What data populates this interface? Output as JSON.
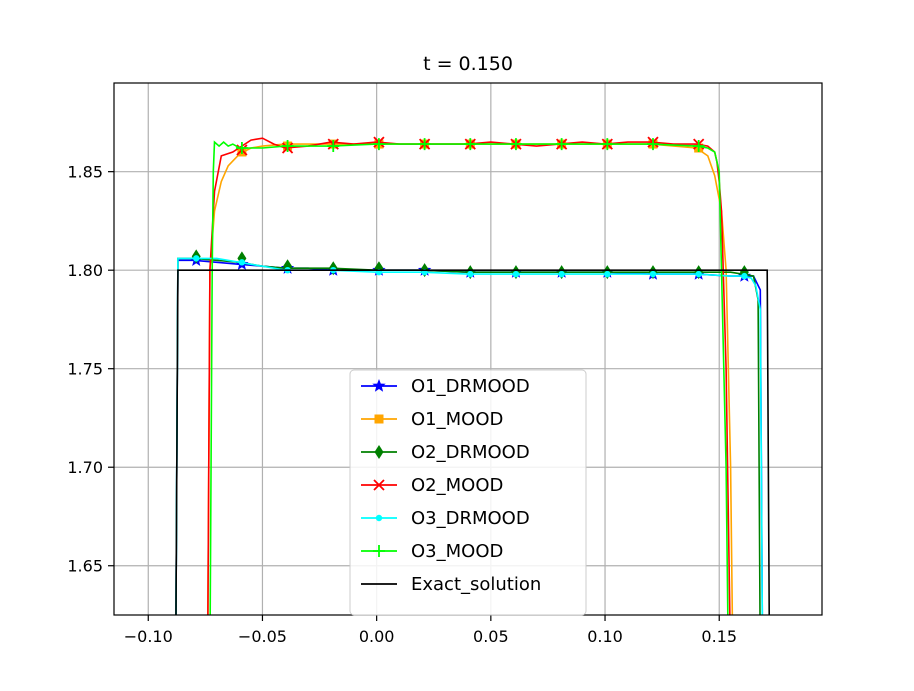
{
  "chart_data": {
    "type": "line",
    "title": "t = 0.150",
    "xlabel": "",
    "ylabel": "",
    "xlim": [
      -0.115,
      0.195
    ],
    "ylim": [
      1.625,
      1.895
    ],
    "xticks": [
      -0.1,
      -0.05,
      0.0,
      0.05,
      0.1,
      0.15
    ],
    "xtick_labels": [
      "−0.10",
      "−0.05",
      "0.00",
      "0.05",
      "0.10",
      "0.15"
    ],
    "yticks": [
      1.65,
      1.7,
      1.75,
      1.8,
      1.85
    ],
    "ytick_labels": [
      "1.65",
      "1.70",
      "1.75",
      "1.80",
      "1.85"
    ],
    "grid": true,
    "legend_position": "lower-center",
    "series": [
      {
        "name": "O1_DRMOOD",
        "color": "#0000ff",
        "marker": "star",
        "x": [
          -0.088,
          -0.087,
          -0.08,
          -0.07,
          -0.06,
          -0.05,
          -0.04,
          -0.03,
          -0.02,
          -0.01,
          0.0,
          0.02,
          0.04,
          0.06,
          0.08,
          0.1,
          0.12,
          0.14,
          0.155,
          0.16,
          0.165,
          0.168,
          0.169
        ],
        "y": [
          1.6,
          1.805,
          1.805,
          1.804,
          1.803,
          1.802,
          1.801,
          1.801,
          1.8,
          1.8,
          1.8,
          1.8,
          1.799,
          1.799,
          1.799,
          1.799,
          1.798,
          1.798,
          1.797,
          1.797,
          1.797,
          1.79,
          1.6
        ],
        "marker_x": [
          -0.079,
          -0.059,
          -0.039,
          -0.019,
          0.001,
          0.021,
          0.041,
          0.061,
          0.081,
          0.101,
          0.121,
          0.141,
          0.161
        ],
        "marker_y": [
          1.805,
          1.803,
          1.801,
          1.8,
          1.8,
          1.8,
          1.799,
          1.799,
          1.799,
          1.799,
          1.798,
          1.798,
          1.797
        ]
      },
      {
        "name": "O1_MOOD",
        "color": "#ffa500",
        "marker": "square",
        "x": [
          -0.074,
          -0.073,
          -0.071,
          -0.068,
          -0.065,
          -0.06,
          -0.055,
          -0.05,
          -0.04,
          -0.02,
          0.0,
          0.02,
          0.04,
          0.06,
          0.08,
          0.1,
          0.12,
          0.14,
          0.145,
          0.148,
          0.151,
          0.153,
          0.155,
          0.156
        ],
        "y": [
          1.6,
          1.8,
          1.83,
          1.845,
          1.853,
          1.859,
          1.862,
          1.863,
          1.864,
          1.864,
          1.864,
          1.864,
          1.864,
          1.864,
          1.864,
          1.864,
          1.864,
          1.862,
          1.858,
          1.848,
          1.83,
          1.8,
          1.7,
          1.6
        ],
        "marker_x": [
          -0.059,
          -0.039,
          -0.019,
          0.001,
          0.021,
          0.041,
          0.061,
          0.081,
          0.101,
          0.121,
          0.141
        ],
        "marker_y": [
          1.86,
          1.863,
          1.864,
          1.864,
          1.864,
          1.864,
          1.864,
          1.864,
          1.864,
          1.864,
          1.862
        ]
      },
      {
        "name": "O2_DRMOOD",
        "color": "#008000",
        "marker": "diamond",
        "x": [
          -0.088,
          -0.087,
          -0.08,
          -0.07,
          -0.06,
          -0.05,
          -0.04,
          -0.03,
          -0.02,
          0.0,
          0.02,
          0.04,
          0.06,
          0.08,
          0.1,
          0.12,
          0.14,
          0.155,
          0.16,
          0.165,
          0.167,
          0.168
        ],
        "y": [
          1.6,
          1.806,
          1.806,
          1.805,
          1.804,
          1.802,
          1.801,
          1.801,
          1.801,
          1.8,
          1.8,
          1.799,
          1.799,
          1.799,
          1.799,
          1.799,
          1.799,
          1.799,
          1.798,
          1.797,
          1.785,
          1.6
        ],
        "marker_x": [
          -0.079,
          -0.059,
          -0.039,
          -0.019,
          0.001,
          0.021,
          0.041,
          0.061,
          0.081,
          0.101,
          0.121,
          0.141,
          0.161
        ],
        "marker_y": [
          1.807,
          1.806,
          1.802,
          1.801,
          1.801,
          1.8,
          1.799,
          1.799,
          1.799,
          1.799,
          1.799,
          1.799,
          1.799
        ]
      },
      {
        "name": "O2_MOOD",
        "color": "#ff0000",
        "marker": "x",
        "x": [
          -0.074,
          -0.073,
          -0.071,
          -0.068,
          -0.063,
          -0.055,
          -0.05,
          -0.045,
          -0.04,
          -0.03,
          -0.02,
          -0.01,
          0.0,
          0.01,
          0.02,
          0.03,
          0.04,
          0.05,
          0.06,
          0.07,
          0.08,
          0.09,
          0.1,
          0.11,
          0.12,
          0.13,
          0.14,
          0.145,
          0.148,
          0.149,
          0.15,
          0.151,
          0.153,
          0.155
        ],
        "y": [
          1.6,
          1.8,
          1.84,
          1.858,
          1.86,
          1.866,
          1.867,
          1.864,
          1.862,
          1.863,
          1.865,
          1.864,
          1.865,
          1.864,
          1.864,
          1.864,
          1.864,
          1.865,
          1.864,
          1.863,
          1.864,
          1.865,
          1.864,
          1.865,
          1.865,
          1.864,
          1.864,
          1.863,
          1.86,
          1.855,
          1.845,
          1.83,
          1.75,
          1.6
        ],
        "marker_x": [
          -0.059,
          -0.039,
          -0.019,
          0.001,
          0.021,
          0.041,
          0.061,
          0.081,
          0.101,
          0.121,
          0.141
        ],
        "marker_y": [
          1.861,
          1.862,
          1.864,
          1.865,
          1.864,
          1.864,
          1.864,
          1.864,
          1.864,
          1.865,
          1.864
        ]
      },
      {
        "name": "O3_DRMOOD",
        "color": "#00ffff",
        "marker": "dot",
        "x": [
          -0.088,
          -0.087,
          -0.08,
          -0.07,
          -0.06,
          -0.05,
          -0.04,
          -0.03,
          -0.02,
          0.0,
          0.02,
          0.04,
          0.06,
          0.08,
          0.1,
          0.12,
          0.14,
          0.155,
          0.16,
          0.164,
          0.166,
          0.168,
          0.169
        ],
        "y": [
          1.6,
          1.806,
          1.806,
          1.806,
          1.804,
          1.802,
          1.8,
          1.8,
          1.8,
          1.799,
          1.799,
          1.798,
          1.798,
          1.798,
          1.798,
          1.798,
          1.798,
          1.797,
          1.797,
          1.796,
          1.792,
          1.78,
          1.6
        ],
        "marker_x": [
          -0.079,
          -0.059,
          -0.039,
          -0.019,
          0.001,
          0.021,
          0.041,
          0.061,
          0.081,
          0.101,
          0.121,
          0.141,
          0.161
        ],
        "marker_y": [
          1.806,
          1.804,
          1.8,
          1.8,
          1.799,
          1.799,
          1.798,
          1.798,
          1.798,
          1.798,
          1.798,
          1.798,
          1.797
        ]
      },
      {
        "name": "O3_MOOD",
        "color": "#00ff00",
        "marker": "plus",
        "x": [
          -0.073,
          -0.072,
          -0.0715,
          -0.071,
          -0.069,
          -0.067,
          -0.065,
          -0.063,
          -0.06,
          -0.05,
          -0.04,
          -0.02,
          0.0,
          0.02,
          0.04,
          0.06,
          0.08,
          0.1,
          0.12,
          0.14,
          0.145,
          0.148,
          0.15,
          0.151,
          0.153,
          0.154
        ],
        "y": [
          1.6,
          1.8,
          1.85,
          1.865,
          1.863,
          1.865,
          1.863,
          1.864,
          1.862,
          1.862,
          1.863,
          1.863,
          1.864,
          1.864,
          1.864,
          1.864,
          1.864,
          1.864,
          1.864,
          1.863,
          1.862,
          1.86,
          1.85,
          1.8,
          1.7,
          1.6
        ],
        "marker_x": [
          -0.059,
          -0.039,
          -0.019,
          0.001,
          0.021,
          0.041,
          0.061,
          0.081,
          0.101,
          0.121,
          0.141
        ],
        "marker_y": [
          1.862,
          1.863,
          1.863,
          1.864,
          1.864,
          1.864,
          1.864,
          1.864,
          1.864,
          1.864,
          1.863
        ]
      },
      {
        "name": "Exact_solution",
        "color": "#000000",
        "marker": "none",
        "x": [
          -0.088,
          -0.087,
          0.171,
          0.172
        ],
        "y": [
          1.6,
          1.8,
          1.8,
          1.6
        ],
        "marker_x": [],
        "marker_y": []
      }
    ]
  }
}
